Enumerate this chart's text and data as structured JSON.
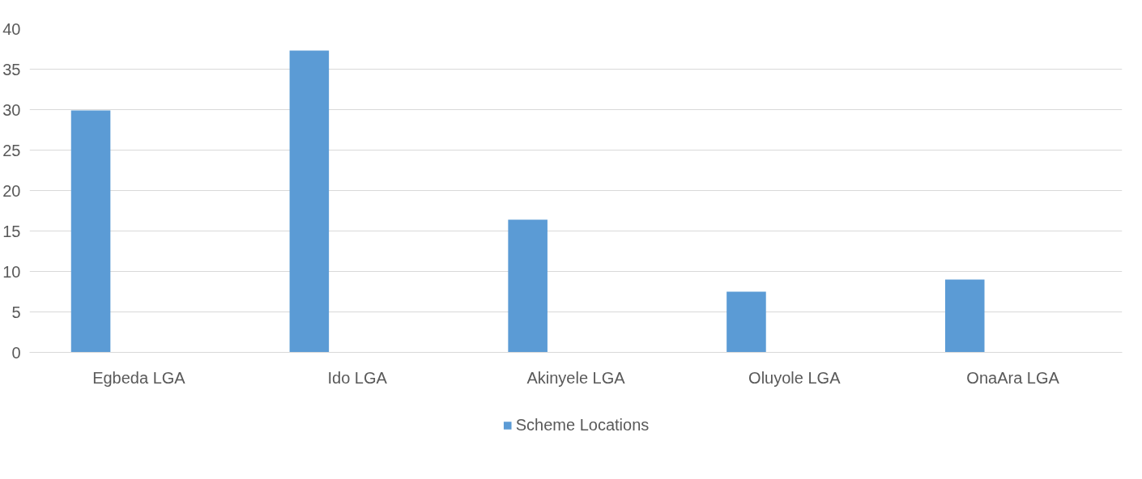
{
  "chart_data": {
    "type": "bar",
    "categories": [
      "Egbeda LGA",
      "Ido LGA",
      "Akinyele LGA",
      "Oluyole LGA",
      "OnaAra LGA"
    ],
    "series": [
      {
        "name": "Scheme Locations",
        "color": "#5b9bd5",
        "values": [
          29.9,
          37.3,
          16.4,
          7.5,
          9.0
        ]
      }
    ],
    "ylim": [
      0,
      40
    ],
    "yticks": [
      0,
      5,
      10,
      15,
      20,
      25,
      30,
      35,
      40
    ],
    "grid": "y",
    "legend": "bottom"
  }
}
